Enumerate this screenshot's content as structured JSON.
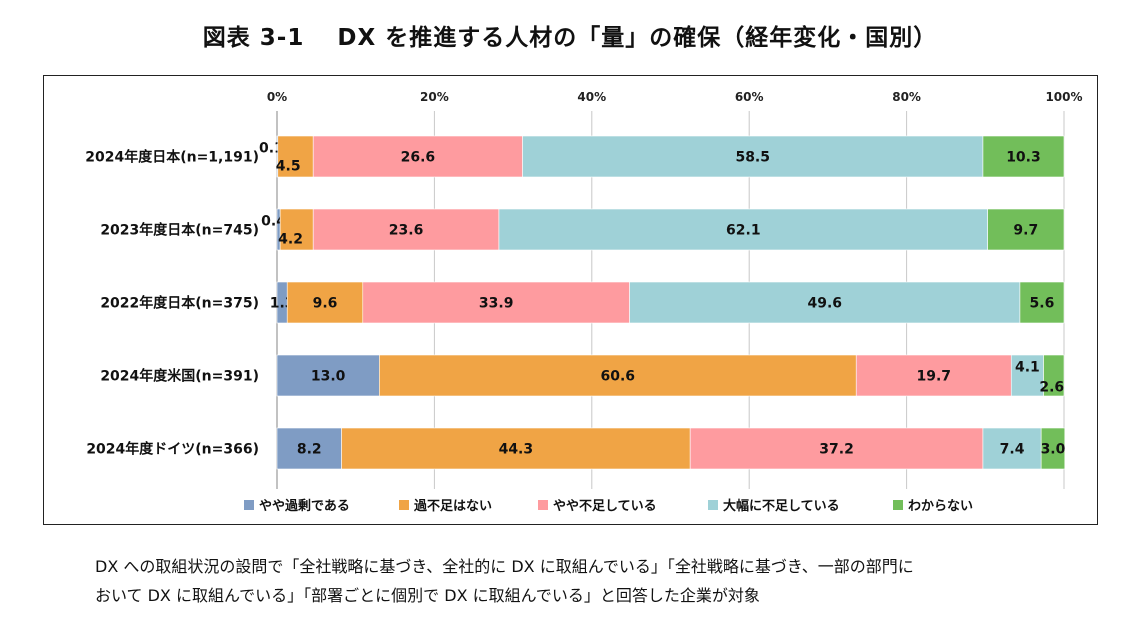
{
  "title": "図表 3-1　 DX を推進する人材の「量」の確保（経年変化・国別）",
  "note": {
    "line1": "DX への取組状況の設問で「全社戦略に基づき、全社的に DX に取組んでいる」「全社戦略に基づき、一部の部門に",
    "line2": "おいて DX に取組んでいる」「部署ごとに個別で DX に取組んでいる」と回答した企業が対象"
  },
  "chart_data": {
    "type": "bar",
    "orientation": "horizontal",
    "stacked": true,
    "percent": true,
    "xlim": [
      0,
      100
    ],
    "xticks": [
      "0%",
      "20%",
      "40%",
      "60%",
      "80%",
      "100%"
    ],
    "grid": true,
    "legend_position": "bottom",
    "categories": [
      "2024年度日本(n=1,191)",
      "2023年度日本(n=745)",
      "2022年度日本(n=375)",
      "2024年度米国(n=391)",
      "2024年度ドイツ(n=366)"
    ],
    "series": [
      {
        "name": "やや過剰である",
        "color": "#7f9cc4",
        "values": [
          0.1,
          0.4,
          1.3,
          13.0,
          8.2
        ],
        "labels": [
          "0.1",
          "0.4",
          "1.3",
          "13.0",
          "8.2"
        ]
      },
      {
        "name": "過不足はない",
        "color": "#f0a445",
        "values": [
          4.5,
          4.2,
          9.6,
          60.6,
          44.3
        ],
        "labels": [
          "4.5",
          "4.2",
          "9.6",
          "60.6",
          "44.3"
        ]
      },
      {
        "name": "やや不足している",
        "color": "#fe9b9f",
        "values": [
          26.6,
          23.6,
          33.9,
          19.7,
          37.2
        ],
        "labels": [
          "26.6",
          "23.6",
          "33.9",
          "19.7",
          "37.2"
        ]
      },
      {
        "name": "大幅に不足している",
        "color": "#9fd1d7",
        "values": [
          58.5,
          62.1,
          49.6,
          4.1,
          7.4
        ],
        "labels": [
          "58.5",
          "62.1",
          "49.6",
          "4.1",
          "7.4"
        ]
      },
      {
        "name": "わからない",
        "color": "#72be5a",
        "values": [
          10.3,
          9.7,
          5.6,
          2.6,
          3.0
        ],
        "labels": [
          "10.3",
          "9.7",
          "5.6",
          "2.6",
          "3.0"
        ]
      }
    ]
  }
}
